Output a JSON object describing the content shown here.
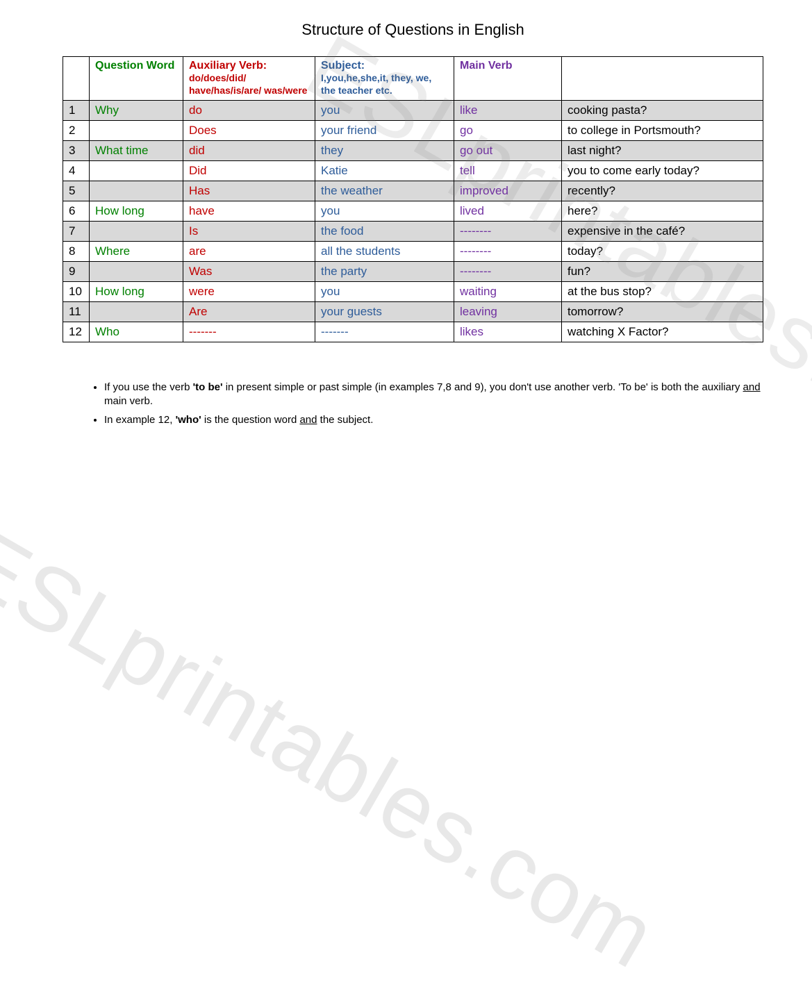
{
  "title": "Structure of Questions in English",
  "colors": {
    "question_word": "#008000",
    "auxiliary_verb": "#c00000",
    "subject": "#2e5c99",
    "main_verb": "#7030a0",
    "text": "#000000",
    "row_shade": "#d9d9d9",
    "background": "#ffffff",
    "border": "#000000"
  },
  "font": {
    "family": "Comic Sans MS",
    "title_size": 22,
    "header_size": 16,
    "cell_size": 17,
    "notes_size": 15
  },
  "headers": {
    "num": "",
    "question_word": "Question Word",
    "auxiliary": {
      "label": "Auxiliary Verb:",
      "sub": "do/does/did/ have/has/is/are/ was/were"
    },
    "subject": {
      "label": "Subject:",
      "sub": "I,you,he,she,it, they, we, the teacher etc."
    },
    "main_verb": "Main Verb",
    "rest": ""
  },
  "rows": [
    {
      "n": "1",
      "shaded": true,
      "qword": "Why",
      "aux": "do",
      "subj": "you",
      "main": "like",
      "rest": "cooking pasta?"
    },
    {
      "n": "2",
      "shaded": false,
      "qword": "",
      "aux": "Does",
      "subj": "your friend",
      "main": "go",
      "rest": "to college in Portsmouth?"
    },
    {
      "n": "3",
      "shaded": true,
      "qword": "What time",
      "aux": "did",
      "subj": "they",
      "main": "go out",
      "rest": "last night?"
    },
    {
      "n": "4",
      "shaded": false,
      "qword": "",
      "aux": "Did",
      "subj": "Katie",
      "main": "tell",
      "rest": "you to come early today?"
    },
    {
      "n": "5",
      "shaded": true,
      "qword": "",
      "aux": "Has",
      "subj": "the weather",
      "main": "improved",
      "rest": "recently?"
    },
    {
      "n": "6",
      "shaded": false,
      "qword": "How long",
      "aux": "have",
      "subj": "you",
      "main": "lived",
      "rest": "here?"
    },
    {
      "n": "7",
      "shaded": true,
      "qword": "",
      "aux": "Is",
      "subj": "the food",
      "main": " --------",
      "rest": "expensive in the café?"
    },
    {
      "n": "8",
      "shaded": false,
      "qword": "Where",
      "aux": "are",
      "subj": "all the students",
      "main": " --------",
      "rest": "today?"
    },
    {
      "n": "9",
      "shaded": true,
      "qword": "",
      "aux": "Was",
      "subj": "the party",
      "main": " --------",
      "rest": "fun?"
    },
    {
      "n": "10",
      "shaded": false,
      "qword": "How long",
      "aux": "were",
      "subj": "you",
      "main": "waiting",
      "rest": "at the bus stop?"
    },
    {
      "n": "11",
      "shaded": true,
      "qword": "",
      "aux": "Are",
      "subj": "your guests",
      "main": "leaving",
      "rest": "tomorrow?"
    },
    {
      "n": "12",
      "shaded": false,
      "qword": "Who",
      "aux": " -------",
      "subj": "-------",
      "main": "likes",
      "rest": "watching X Factor?"
    }
  ],
  "notes": {
    "bullet1_pre": "If you use the verb ",
    "bullet1_bold1": "'to be'",
    "bullet1_mid": " in present simple or past simple (in examples 7,8 and 9), you don't use another verb. 'To be' is both the auxiliary ",
    "bullet1_und": "and",
    "bullet1_post": " main verb.",
    "bullet2_pre": "In example 12, ",
    "bullet2_bold": "'who'",
    "bullet2_mid": " is the question word ",
    "bullet2_und": "and",
    "bullet2_post": " the subject."
  },
  "watermark": "ESLprintables.com"
}
